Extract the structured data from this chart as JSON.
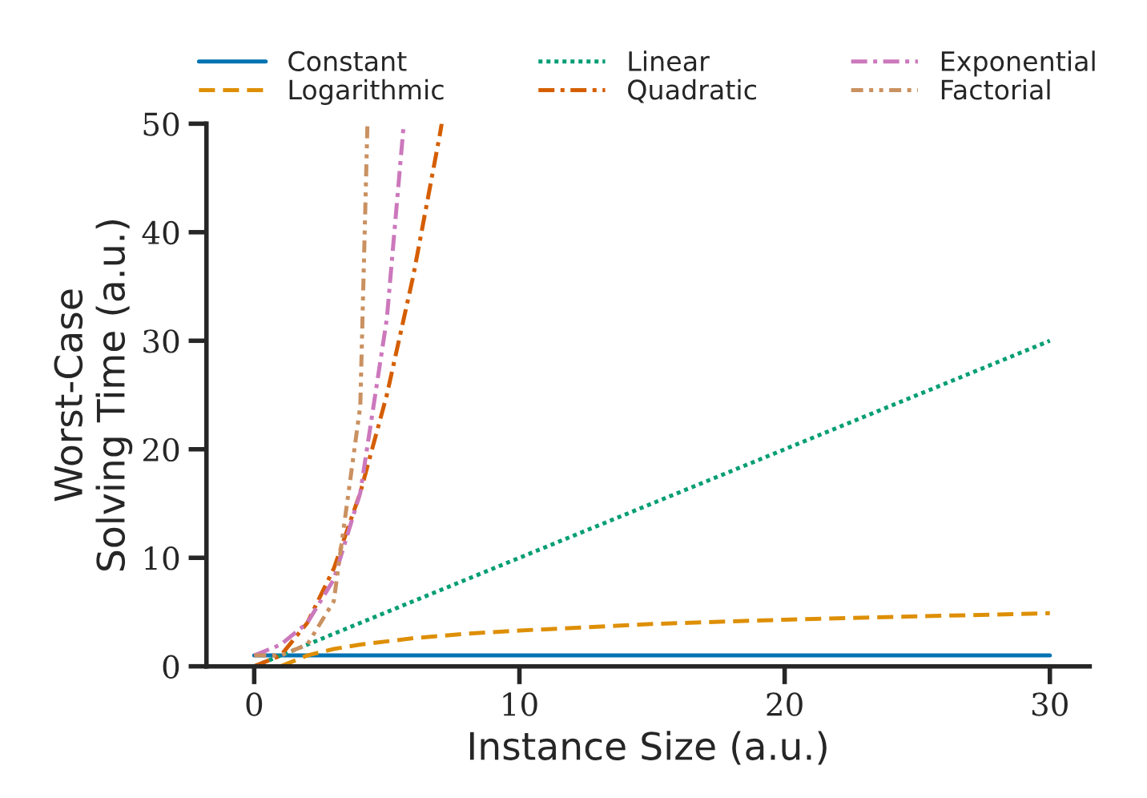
{
  "chart_data": {
    "type": "line",
    "xlabel": "Instance Size (a.u.)",
    "ylabel": "Worst-Case\nSolving Time (a.u.)",
    "xlim": [
      -1.8,
      31.5
    ],
    "ylim": [
      0,
      50
    ],
    "xticks": [
      0,
      10,
      20,
      30
    ],
    "yticks": [
      0,
      10,
      20,
      30,
      40,
      50
    ],
    "grid": false,
    "legend": "top",
    "marker": "none",
    "series": [
      {
        "name": "Constant",
        "color": "#0173b2",
        "line_style": "solid",
        "x": [
          0,
          30
        ],
        "values": [
          1,
          1
        ]
      },
      {
        "name": "Logarithmic",
        "color": "#de8f05",
        "line_style": "dashed",
        "x": [
          1,
          2,
          3,
          4,
          6,
          8,
          10,
          15,
          20,
          25,
          30
        ],
        "values": [
          0,
          1,
          1.6,
          2,
          2.6,
          3,
          3.3,
          3.9,
          4.3,
          4.6,
          4.9
        ]
      },
      {
        "name": "Linear",
        "color": "#029e73",
        "line_style": "dotted",
        "x": [
          0,
          30
        ],
        "values": [
          0,
          30
        ]
      },
      {
        "name": "Quadratic",
        "color": "#d55e00",
        "line_style": "dashdot",
        "x": [
          0,
          1,
          2,
          3,
          4,
          5,
          6,
          7,
          7.07
        ],
        "values": [
          0,
          1,
          4,
          9,
          16,
          25,
          36,
          49,
          50
        ]
      },
      {
        "name": "Exponential",
        "color": "#cc78bc",
        "line_style": "dashdot",
        "x": [
          0,
          1,
          2,
          3,
          4,
          5,
          5.64
        ],
        "values": [
          1,
          2,
          4,
          8,
          16,
          32,
          50
        ]
      },
      {
        "name": "Factorial",
        "color": "#ca9161",
        "line_style": "dashdotdot",
        "x": [
          0,
          1,
          2,
          3,
          4,
          4.27
        ],
        "values": [
          1,
          1,
          2,
          6,
          24,
          50
        ]
      }
    ]
  }
}
